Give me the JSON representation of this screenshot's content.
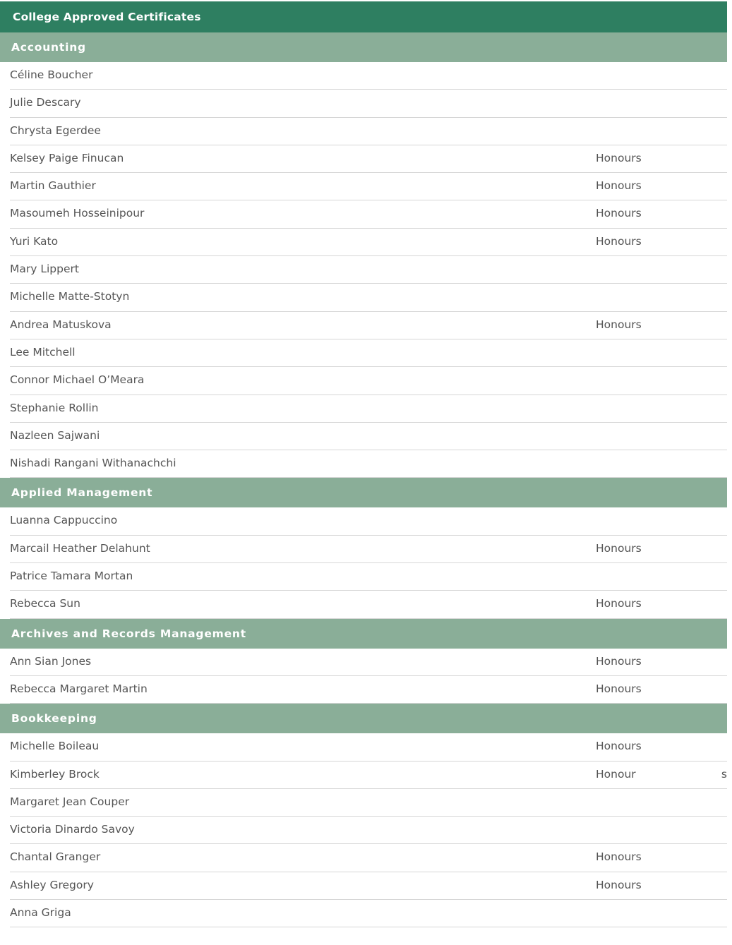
{
  "title": "College Approved Certificates",
  "sections": [
    {
      "heading": "Accounting",
      "rows": [
        {
          "name": "Céline Boucher",
          "note": ""
        },
        {
          "name": "Julie Descary",
          "note": ""
        },
        {
          "name": "Chrysta Egerdee",
          "note": ""
        },
        {
          "name": "Kelsey Paige Finucan",
          "note": "Honours"
        },
        {
          "name": "Martin Gauthier",
          "note": "Honours"
        },
        {
          "name": "Masoumeh Hosseinipour",
          "note": "Honours"
        },
        {
          "name": "Yuri Kato",
          "note": "Honours"
        },
        {
          "name": "Mary Lippert",
          "note": ""
        },
        {
          "name": "Michelle Matte-Stotyn",
          "note": ""
        },
        {
          "name": "Andrea Matuskova",
          "note": "Honours"
        },
        {
          "name": "Lee Mitchell",
          "note": ""
        },
        {
          "name": "Connor Michael O’Meara",
          "note": ""
        },
        {
          "name": "Stephanie Rollin",
          "note": ""
        },
        {
          "name": "Nazleen Sajwani",
          "note": ""
        },
        {
          "name": "Nishadi Rangani Withanachchi",
          "note": ""
        }
      ]
    },
    {
      "heading": "Applied Management",
      "rows": [
        {
          "name": "Luanna Cappuccino",
          "note": ""
        },
        {
          "name": "Marcail Heather Delahunt",
          "note": "Honours"
        },
        {
          "name": "Patrice Tamara Mortan",
          "note": ""
        },
        {
          "name": "Rebecca Sun",
          "note": "Honours"
        }
      ]
    },
    {
      "heading": "Archives and Records Management",
      "rows": [
        {
          "name": "Ann Sian Jones",
          "note": "Honours"
        },
        {
          "name": "Rebecca Margaret Martin",
          "note": "Honours"
        }
      ]
    },
    {
      "heading": "Bookkeeping",
      "rows": [
        {
          "name": "Michelle Boileau",
          "note": "Honours"
        },
        {
          "name": "Kimberley Brock",
          "note": "Honour",
          "extra": "s"
        },
        {
          "name": "Margaret Jean Couper",
          "note": ""
        },
        {
          "name": "Victoria Dinardo Savoy",
          "note": ""
        },
        {
          "name": "Chantal Granger",
          "note": "Honours"
        },
        {
          "name": "Ashley Gregory",
          "note": "Honours"
        },
        {
          "name": "Anna Griga",
          "note": ""
        }
      ]
    }
  ],
  "colors": {
    "title_bg": "#2e7f61",
    "section_bg": "#8aae98",
    "text": "#555555"
  }
}
